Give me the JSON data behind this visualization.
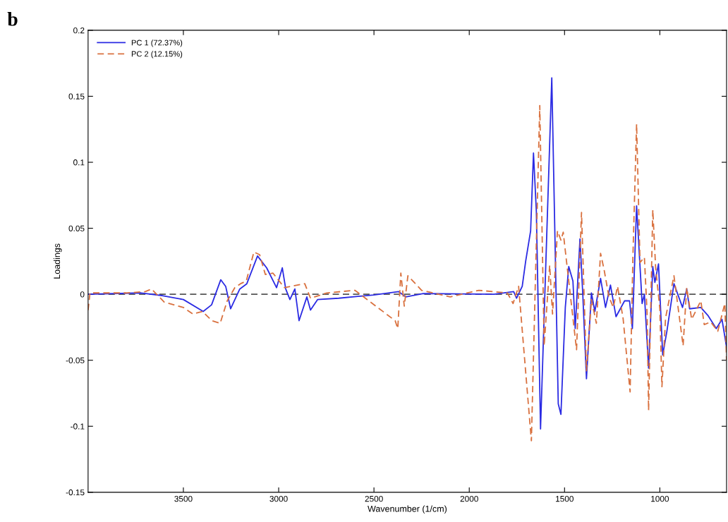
{
  "chart_data": {
    "type": "line",
    "xlabel": "Wavenumber (1/cm)",
    "ylabel": "Loadings",
    "annotations": [
      "b"
    ],
    "xlim": [
      4000,
      650
    ],
    "xticks": [
      3500,
      3000,
      2500,
      2000,
      1500,
      1000
    ],
    "ylim": [
      -0.15,
      0.2
    ],
    "yticks": [
      -0.15,
      -0.1,
      -0.05,
      0,
      0.05,
      0.1,
      0.15,
      0.2
    ],
    "grid": false,
    "legend": "top left",
    "marker": "none",
    "ref_lines": [
      {
        "axis": "y",
        "value": 0,
        "color": "#555555",
        "line_style": "dashed"
      }
    ],
    "series": [
      {
        "name": "PC 1 (72.37%)",
        "color": "#2b2be3",
        "line_style": "solid",
        "x": [
          4000,
          3722,
          3611,
          3500,
          3396,
          3352,
          3304,
          3278,
          3252,
          3204,
          3167,
          3111,
          3063,
          3011,
          2981,
          2963,
          2941,
          2915,
          2893,
          2852,
          2833,
          2796,
          2685,
          2500,
          2370,
          2333,
          2241,
          1870,
          1767,
          1752,
          1722,
          1704,
          1678,
          1663,
          1648,
          1626,
          1567,
          1533,
          1519,
          1496,
          1478,
          1456,
          1444,
          1419,
          1404,
          1385,
          1359,
          1341,
          1311,
          1285,
          1259,
          1230,
          1185,
          1159,
          1144,
          1122,
          1093,
          1081,
          1059,
          1037,
          1026,
          1007,
          985,
          963,
          926,
          881,
          859,
          844,
          785,
          748,
          704,
          674,
          650
        ],
        "values": [
          0,
          0.001,
          -0.001,
          -0.004,
          -0.013,
          -0.008,
          0.011,
          0.006,
          -0.011,
          0.004,
          0.008,
          0.029,
          0.02,
          0.005,
          0.02,
          0.004,
          -0.004,
          0.004,
          -0.02,
          -0.002,
          -0.012,
          -0.004,
          -0.003,
          -0.0005,
          0.002,
          -0.002,
          0.0005,
          0,
          0.002,
          -0.003,
          0.006,
          0.025,
          0.048,
          0.107,
          0.063,
          -0.102,
          0.164,
          -0.083,
          -0.091,
          -0.01,
          0.021,
          0.01,
          -0.026,
          0.042,
          -0.001,
          -0.064,
          0.001,
          -0.013,
          0.012,
          -0.01,
          0.007,
          -0.017,
          -0.005,
          -0.005,
          -0.026,
          0.067,
          -0.007,
          0,
          -0.056,
          0.021,
          0.009,
          0.023,
          -0.046,
          -0.028,
          0.008,
          -0.01,
          0.004,
          -0.011,
          -0.01,
          -0.016,
          -0.026,
          -0.019,
          -0.04
        ]
      },
      {
        "name": "PC 2 (12.15%)",
        "color": "#d9713f",
        "line_style": "dashed",
        "x": [
          4000,
          3990,
          3800,
          3700,
          3667,
          3600,
          3550,
          3500,
          3450,
          3400,
          3350,
          3307,
          3270,
          3230,
          3200,
          3170,
          3130,
          3100,
          3070,
          3030,
          2970,
          2863,
          2833,
          2748,
          2600,
          2389,
          2375,
          2359,
          2341,
          2322,
          2250,
          2100,
          1950,
          1800,
          1770,
          1741,
          1693,
          1674,
          1630,
          1607,
          1578,
          1563,
          1537,
          1519,
          1507,
          1478,
          1437,
          1411,
          1385,
          1359,
          1333,
          1311,
          1293,
          1267,
          1244,
          1222,
          1193,
          1156,
          1141,
          1122,
          1104,
          1081,
          1067,
          1059,
          1037,
          1022,
          1000,
          989,
          970,
          926,
          878,
          859,
          833,
          785,
          767,
          733,
          696,
          659,
          650
        ],
        "values": [
          -0.012,
          0.001,
          0.001,
          0.002,
          0.004,
          -0.006,
          -0.008,
          -0.01,
          -0.015,
          -0.013,
          -0.02,
          -0.022,
          -0.005,
          0.005,
          0.008,
          0.01,
          0.032,
          0.03,
          0.015,
          0.016,
          0.005,
          0.008,
          -0.003,
          0.001,
          0.003,
          -0.02,
          -0.026,
          0.016,
          -0.009,
          0.014,
          0.003,
          -0.002,
          0.003,
          0.001,
          -0.007,
          0.006,
          -0.078,
          -0.111,
          0.143,
          -0.039,
          0.022,
          -0.015,
          0.048,
          0.041,
          0.047,
          0.01,
          -0.042,
          0.062,
          -0.058,
          -0.004,
          -0.022,
          0.031,
          0.019,
          -0.002,
          -0.01,
          0.006,
          -0.018,
          -0.074,
          0.03,
          0.129,
          0.024,
          0.028,
          -0.014,
          -0.088,
          0.064,
          0.02,
          -0.011,
          -0.07,
          -0.018,
          0.014,
          -0.039,
          0.005,
          -0.019,
          -0.005,
          -0.023,
          -0.021,
          -0.028,
          -0.007,
          -0.05
        ]
      }
    ]
  }
}
